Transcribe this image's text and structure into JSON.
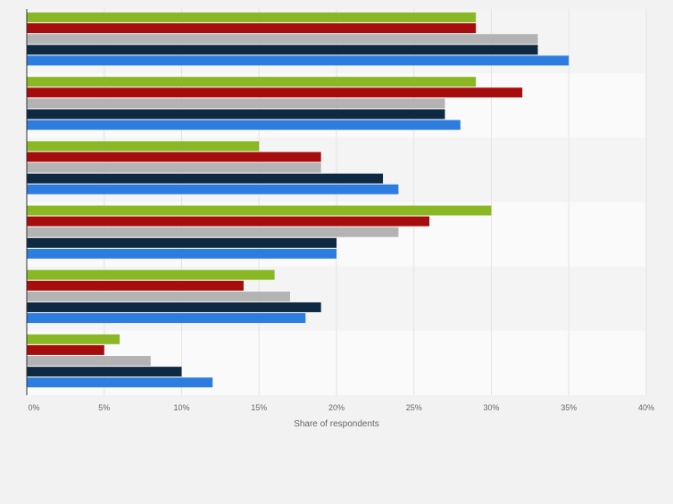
{
  "chart_data": {
    "type": "bar",
    "orientation": "horizontal",
    "xlabel": "Share of respondents",
    "xlim": [
      0,
      40
    ],
    "x_ticks": [
      "0%",
      "5%",
      "10%",
      "15%",
      "20%",
      "25%",
      "30%",
      "35%",
      "40%"
    ],
    "grid": true,
    "legend": "none",
    "categories": [
      "",
      "",
      "",
      "",
      "",
      ""
    ],
    "series": [
      {
        "color": "#8ab825",
        "values": [
          29,
          29,
          15,
          30,
          16,
          6
        ]
      },
      {
        "color": "#a70d0d",
        "values": [
          29,
          32,
          19,
          26,
          14,
          5
        ]
      },
      {
        "color": "#b3b3b3",
        "values": [
          33,
          27,
          19,
          24,
          17,
          8
        ]
      },
      {
        "color": "#0f2942",
        "values": [
          33,
          27,
          23,
          20,
          19,
          10
        ]
      },
      {
        "color": "#2d7de0",
        "values": [
          35,
          28,
          24,
          20,
          18,
          12
        ]
      }
    ]
  }
}
